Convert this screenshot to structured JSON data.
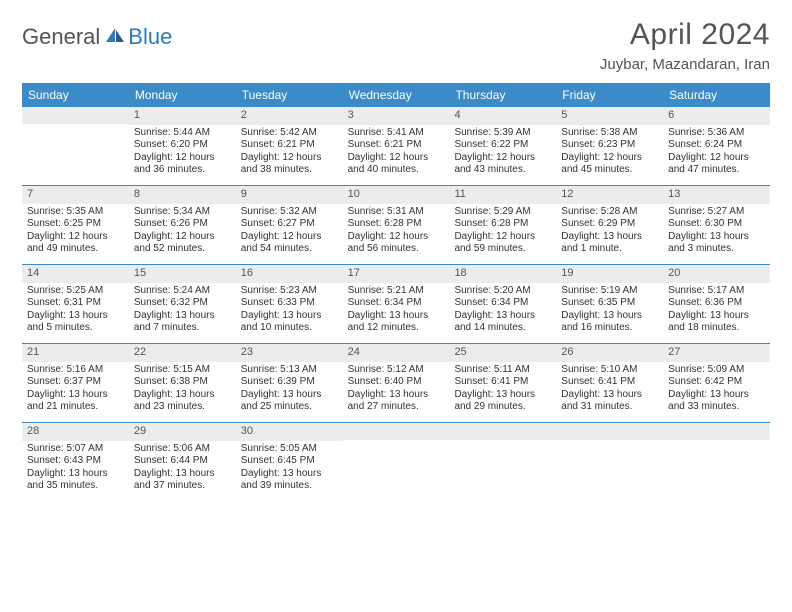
{
  "logo": {
    "part1": "General",
    "part2": "Blue"
  },
  "title": "April 2024",
  "location": "Juybar, Mazandaran, Iran",
  "day_names": [
    "Sunday",
    "Monday",
    "Tuesday",
    "Wednesday",
    "Thursday",
    "Friday",
    "Saturday"
  ],
  "colors": {
    "header_bg": "#3b8bc9",
    "daynum_bg": "#ececec",
    "border": "#3b8bc9",
    "text": "#333333",
    "title": "#555555",
    "logo_blue": "#2b7bbf"
  },
  "weeks": [
    [
      {
        "blank": true
      },
      {
        "day": "1",
        "sunrise": "Sunrise: 5:44 AM",
        "sunset": "Sunset: 6:20 PM",
        "daylight1": "Daylight: 12 hours",
        "daylight2": "and 36 minutes."
      },
      {
        "day": "2",
        "sunrise": "Sunrise: 5:42 AM",
        "sunset": "Sunset: 6:21 PM",
        "daylight1": "Daylight: 12 hours",
        "daylight2": "and 38 minutes."
      },
      {
        "day": "3",
        "sunrise": "Sunrise: 5:41 AM",
        "sunset": "Sunset: 6:21 PM",
        "daylight1": "Daylight: 12 hours",
        "daylight2": "and 40 minutes."
      },
      {
        "day": "4",
        "sunrise": "Sunrise: 5:39 AM",
        "sunset": "Sunset: 6:22 PM",
        "daylight1": "Daylight: 12 hours",
        "daylight2": "and 43 minutes."
      },
      {
        "day": "5",
        "sunrise": "Sunrise: 5:38 AM",
        "sunset": "Sunset: 6:23 PM",
        "daylight1": "Daylight: 12 hours",
        "daylight2": "and 45 minutes."
      },
      {
        "day": "6",
        "sunrise": "Sunrise: 5:36 AM",
        "sunset": "Sunset: 6:24 PM",
        "daylight1": "Daylight: 12 hours",
        "daylight2": "and 47 minutes."
      }
    ],
    [
      {
        "day": "7",
        "sunrise": "Sunrise: 5:35 AM",
        "sunset": "Sunset: 6:25 PM",
        "daylight1": "Daylight: 12 hours",
        "daylight2": "and 49 minutes."
      },
      {
        "day": "8",
        "sunrise": "Sunrise: 5:34 AM",
        "sunset": "Sunset: 6:26 PM",
        "daylight1": "Daylight: 12 hours",
        "daylight2": "and 52 minutes."
      },
      {
        "day": "9",
        "sunrise": "Sunrise: 5:32 AM",
        "sunset": "Sunset: 6:27 PM",
        "daylight1": "Daylight: 12 hours",
        "daylight2": "and 54 minutes."
      },
      {
        "day": "10",
        "sunrise": "Sunrise: 5:31 AM",
        "sunset": "Sunset: 6:28 PM",
        "daylight1": "Daylight: 12 hours",
        "daylight2": "and 56 minutes."
      },
      {
        "day": "11",
        "sunrise": "Sunrise: 5:29 AM",
        "sunset": "Sunset: 6:28 PM",
        "daylight1": "Daylight: 12 hours",
        "daylight2": "and 59 minutes."
      },
      {
        "day": "12",
        "sunrise": "Sunrise: 5:28 AM",
        "sunset": "Sunset: 6:29 PM",
        "daylight1": "Daylight: 13 hours",
        "daylight2": "and 1 minute."
      },
      {
        "day": "13",
        "sunrise": "Sunrise: 5:27 AM",
        "sunset": "Sunset: 6:30 PM",
        "daylight1": "Daylight: 13 hours",
        "daylight2": "and 3 minutes."
      }
    ],
    [
      {
        "day": "14",
        "sunrise": "Sunrise: 5:25 AM",
        "sunset": "Sunset: 6:31 PM",
        "daylight1": "Daylight: 13 hours",
        "daylight2": "and 5 minutes."
      },
      {
        "day": "15",
        "sunrise": "Sunrise: 5:24 AM",
        "sunset": "Sunset: 6:32 PM",
        "daylight1": "Daylight: 13 hours",
        "daylight2": "and 7 minutes."
      },
      {
        "day": "16",
        "sunrise": "Sunrise: 5:23 AM",
        "sunset": "Sunset: 6:33 PM",
        "daylight1": "Daylight: 13 hours",
        "daylight2": "and 10 minutes."
      },
      {
        "day": "17",
        "sunrise": "Sunrise: 5:21 AM",
        "sunset": "Sunset: 6:34 PM",
        "daylight1": "Daylight: 13 hours",
        "daylight2": "and 12 minutes."
      },
      {
        "day": "18",
        "sunrise": "Sunrise: 5:20 AM",
        "sunset": "Sunset: 6:34 PM",
        "daylight1": "Daylight: 13 hours",
        "daylight2": "and 14 minutes."
      },
      {
        "day": "19",
        "sunrise": "Sunrise: 5:19 AM",
        "sunset": "Sunset: 6:35 PM",
        "daylight1": "Daylight: 13 hours",
        "daylight2": "and 16 minutes."
      },
      {
        "day": "20",
        "sunrise": "Sunrise: 5:17 AM",
        "sunset": "Sunset: 6:36 PM",
        "daylight1": "Daylight: 13 hours",
        "daylight2": "and 18 minutes."
      }
    ],
    [
      {
        "day": "21",
        "sunrise": "Sunrise: 5:16 AM",
        "sunset": "Sunset: 6:37 PM",
        "daylight1": "Daylight: 13 hours",
        "daylight2": "and 21 minutes."
      },
      {
        "day": "22",
        "sunrise": "Sunrise: 5:15 AM",
        "sunset": "Sunset: 6:38 PM",
        "daylight1": "Daylight: 13 hours",
        "daylight2": "and 23 minutes."
      },
      {
        "day": "23",
        "sunrise": "Sunrise: 5:13 AM",
        "sunset": "Sunset: 6:39 PM",
        "daylight1": "Daylight: 13 hours",
        "daylight2": "and 25 minutes."
      },
      {
        "day": "24",
        "sunrise": "Sunrise: 5:12 AM",
        "sunset": "Sunset: 6:40 PM",
        "daylight1": "Daylight: 13 hours",
        "daylight2": "and 27 minutes."
      },
      {
        "day": "25",
        "sunrise": "Sunrise: 5:11 AM",
        "sunset": "Sunset: 6:41 PM",
        "daylight1": "Daylight: 13 hours",
        "daylight2": "and 29 minutes."
      },
      {
        "day": "26",
        "sunrise": "Sunrise: 5:10 AM",
        "sunset": "Sunset: 6:41 PM",
        "daylight1": "Daylight: 13 hours",
        "daylight2": "and 31 minutes."
      },
      {
        "day": "27",
        "sunrise": "Sunrise: 5:09 AM",
        "sunset": "Sunset: 6:42 PM",
        "daylight1": "Daylight: 13 hours",
        "daylight2": "and 33 minutes."
      }
    ],
    [
      {
        "day": "28",
        "sunrise": "Sunrise: 5:07 AM",
        "sunset": "Sunset: 6:43 PM",
        "daylight1": "Daylight: 13 hours",
        "daylight2": "and 35 minutes."
      },
      {
        "day": "29",
        "sunrise": "Sunrise: 5:06 AM",
        "sunset": "Sunset: 6:44 PM",
        "daylight1": "Daylight: 13 hours",
        "daylight2": "and 37 minutes."
      },
      {
        "day": "30",
        "sunrise": "Sunrise: 5:05 AM",
        "sunset": "Sunset: 6:45 PM",
        "daylight1": "Daylight: 13 hours",
        "daylight2": "and 39 minutes."
      },
      {
        "blank": true
      },
      {
        "blank": true
      },
      {
        "blank": true
      },
      {
        "blank": true
      }
    ]
  ]
}
